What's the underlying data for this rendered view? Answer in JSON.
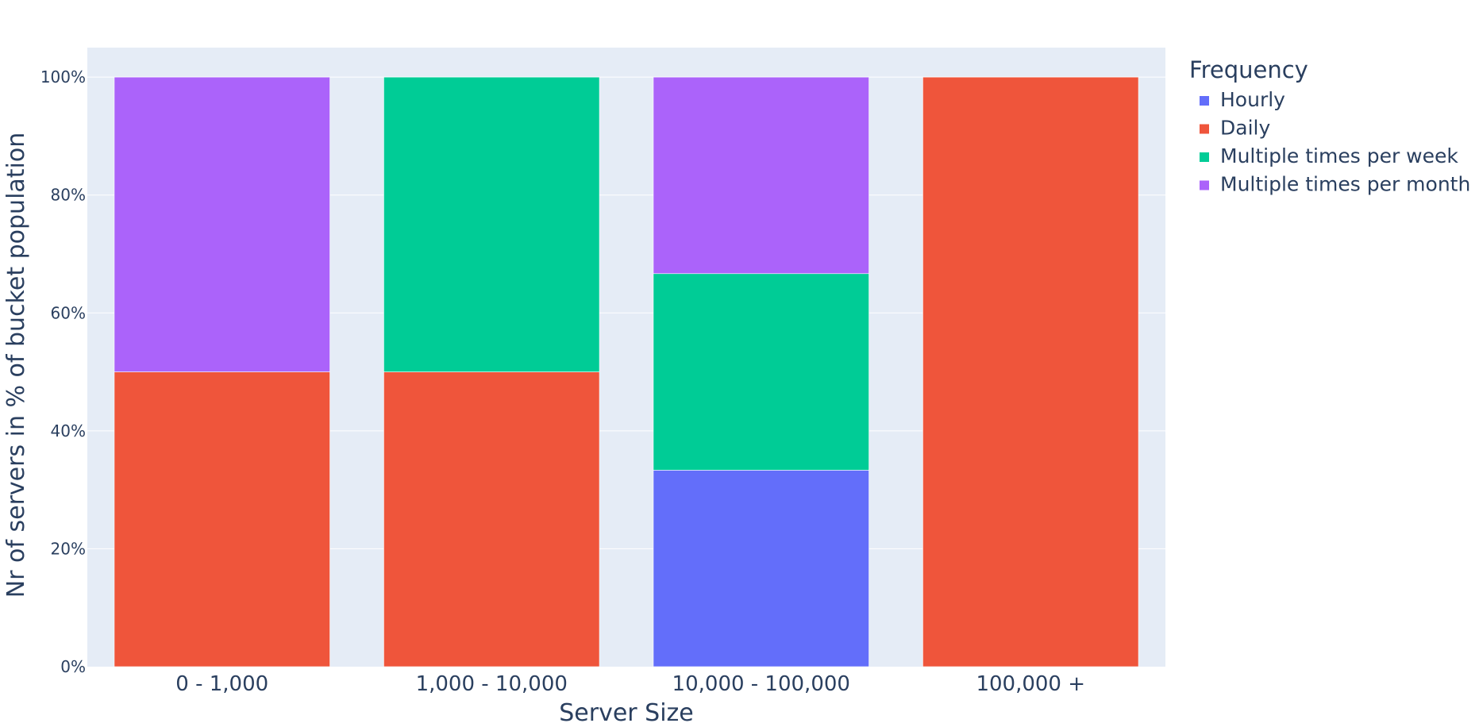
{
  "chart_data": {
    "type": "bar",
    "stacked": true,
    "categories": [
      "0 - 1,000",
      "1,000 - 10,000",
      "10,000 - 100,000",
      "100,000 +"
    ],
    "series": [
      {
        "name": "Hourly",
        "color": "#636efa",
        "values": [
          0,
          0,
          33.3333,
          0
        ]
      },
      {
        "name": "Daily",
        "color": "#ef553b",
        "values": [
          50,
          50,
          0,
          100
        ]
      },
      {
        "name": "Multiple times per week",
        "color": "#00cc96",
        "values": [
          0,
          50,
          33.3333,
          0
        ]
      },
      {
        "name": "Multiple times per month",
        "color": "#ab63fa",
        "values": [
          50,
          0,
          33.3333,
          0
        ]
      }
    ],
    "xlabel": "Server Size",
    "ylabel": "Nr of servers in % of bucket population",
    "ylim": [
      0,
      105
    ],
    "yticks": [
      0,
      20,
      40,
      60,
      80,
      100
    ],
    "ytick_labels": [
      "0%",
      "20%",
      "40%",
      "60%",
      "80%",
      "100%"
    ],
    "grid": true,
    "plot_background": "#e5ecf6",
    "legend": {
      "title": "Frequency",
      "placement": "right"
    }
  }
}
